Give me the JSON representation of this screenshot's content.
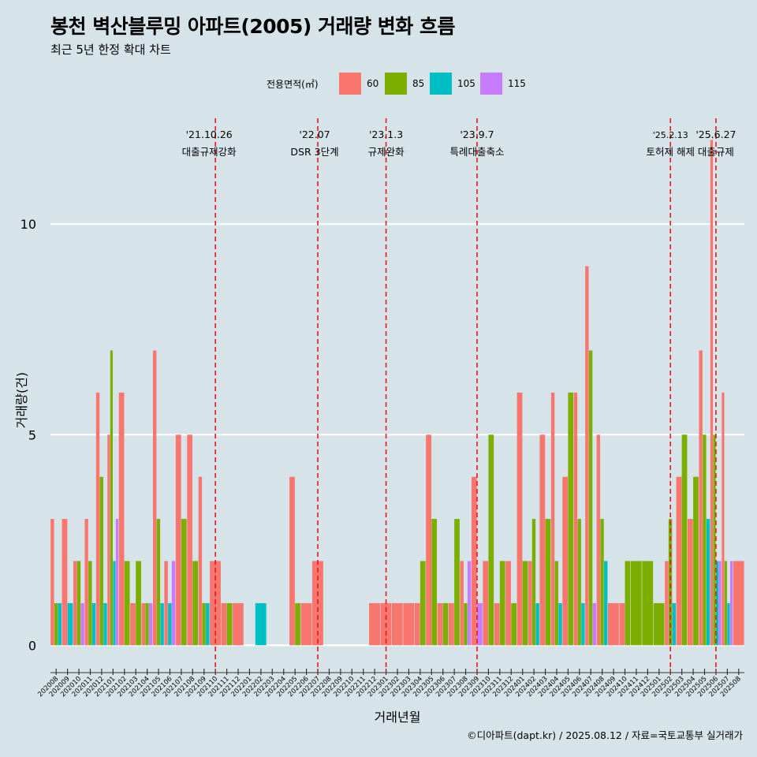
{
  "title": "봉천 벽산블루밍 아파트(2005) 거래량 변화 흐름",
  "subtitle": "최근 5년 한정 확대 차트",
  "legend": {
    "title": "전용면적(㎡)",
    "items": [
      {
        "label": "60",
        "color": "#f8766d"
      },
      {
        "label": "85",
        "color": "#7cae00"
      },
      {
        "label": "105",
        "color": "#00bfc4"
      },
      {
        "label": "115",
        "color": "#c77cff"
      }
    ]
  },
  "credit": "©디아파트(dapt.kr) / 2025.08.12 / 자료=국토교통부 실거래가",
  "chart_data": {
    "type": "bar",
    "stacking": "dodge",
    "xlabel": "거래년월",
    "ylabel": "거래량(건)",
    "ylim": [
      -0.5,
      12.7
    ],
    "yticks": [
      0,
      5,
      10
    ],
    "grid": true,
    "legend_position": "top",
    "categories": [
      "202008",
      "202009",
      "202010",
      "202011",
      "202012",
      "202101",
      "202102",
      "202103",
      "202104",
      "202105",
      "202106",
      "202107",
      "202108",
      "202109",
      "202110",
      "202111",
      "202112",
      "202201",
      "202202",
      "202203",
      "202204",
      "202205",
      "202206",
      "202207",
      "202208",
      "202209",
      "202210",
      "202211",
      "202212",
      "202301",
      "202302",
      "202303",
      "202304",
      "202305",
      "202306",
      "202307",
      "202308",
      "202309",
      "202310",
      "202311",
      "202312",
      "202401",
      "202402",
      "202403",
      "202404",
      "202405",
      "202406",
      "202407",
      "202408",
      "202409",
      "202410",
      "202411",
      "202412",
      "202501",
      "202502",
      "202503",
      "202504",
      "202505",
      "202506",
      "202507",
      "202508"
    ],
    "series": [
      {
        "name": "60",
        "values": [
          3,
          3,
          2,
          3,
          6,
          5,
          6,
          1,
          1,
          7,
          2,
          5,
          5,
          4,
          2,
          1,
          1,
          0,
          0,
          0,
          0,
          4,
          1,
          2,
          0,
          0,
          0,
          0,
          1,
          1,
          1,
          1,
          1,
          5,
          1,
          1,
          2,
          4,
          2,
          1,
          2,
          6,
          2,
          5,
          6,
          4,
          6,
          9,
          5,
          1,
          1,
          0,
          0,
          0,
          2,
          4,
          3,
          7,
          12,
          6,
          2
        ]
      },
      {
        "name": "85",
        "values": [
          1,
          0,
          2,
          2,
          4,
          7,
          2,
          2,
          1,
          3,
          0,
          3,
          2,
          1,
          0,
          1,
          0,
          0,
          0,
          0,
          0,
          1,
          0,
          0,
          0,
          0,
          0,
          0,
          0,
          0,
          0,
          0,
          2,
          3,
          1,
          3,
          1,
          0,
          5,
          2,
          1,
          2,
          3,
          3,
          2,
          6,
          3,
          7,
          3,
          0,
          2,
          2,
          2,
          1,
          3,
          5,
          4,
          5,
          5,
          2,
          0
        ]
      },
      {
        "name": "105",
        "values": [
          1,
          1,
          0,
          1,
          1,
          2,
          0,
          0,
          0,
          1,
          1,
          0,
          0,
          1,
          0,
          0,
          0,
          0,
          1,
          0,
          0,
          0,
          0,
          0,
          0,
          0,
          0,
          0,
          0,
          0,
          0,
          0,
          0,
          0,
          0,
          0,
          0,
          0,
          0,
          0,
          0,
          0,
          1,
          0,
          1,
          0,
          1,
          0,
          2,
          0,
          0,
          0,
          0,
          0,
          1,
          0,
          0,
          3,
          2,
          1,
          0
        ]
      },
      {
        "name": "115",
        "values": [
          0,
          0,
          1,
          0,
          0,
          3,
          0,
          0,
          1,
          0,
          2,
          0,
          0,
          0,
          0,
          0,
          0,
          0,
          0,
          0,
          0,
          0,
          0,
          0,
          0,
          0,
          0,
          0,
          0,
          0,
          0,
          0,
          0,
          0,
          0,
          0,
          2,
          1,
          0,
          0,
          0,
          0,
          0,
          0,
          0,
          0,
          0,
          1,
          0,
          0,
          0,
          0,
          0,
          0,
          0,
          0,
          0,
          0,
          2,
          2,
          0
        ]
      }
    ],
    "annotations": [
      {
        "x": "202110",
        "date": "'21.10.26",
        "label": "대출규제강화"
      },
      {
        "x": "202207",
        "date": "'22.07",
        "label": "DSR 3단계"
      },
      {
        "x": "202301",
        "date": "'23.1.3",
        "label": "규제완화"
      },
      {
        "x": "202309",
        "date": "'23.9.7",
        "label": "특례대출축소"
      },
      {
        "x": "202502",
        "date": "'25.2.13",
        "label": "토허제 해제"
      },
      {
        "x": "202506",
        "date": "'25.6.27",
        "label": "대출규제"
      }
    ]
  }
}
